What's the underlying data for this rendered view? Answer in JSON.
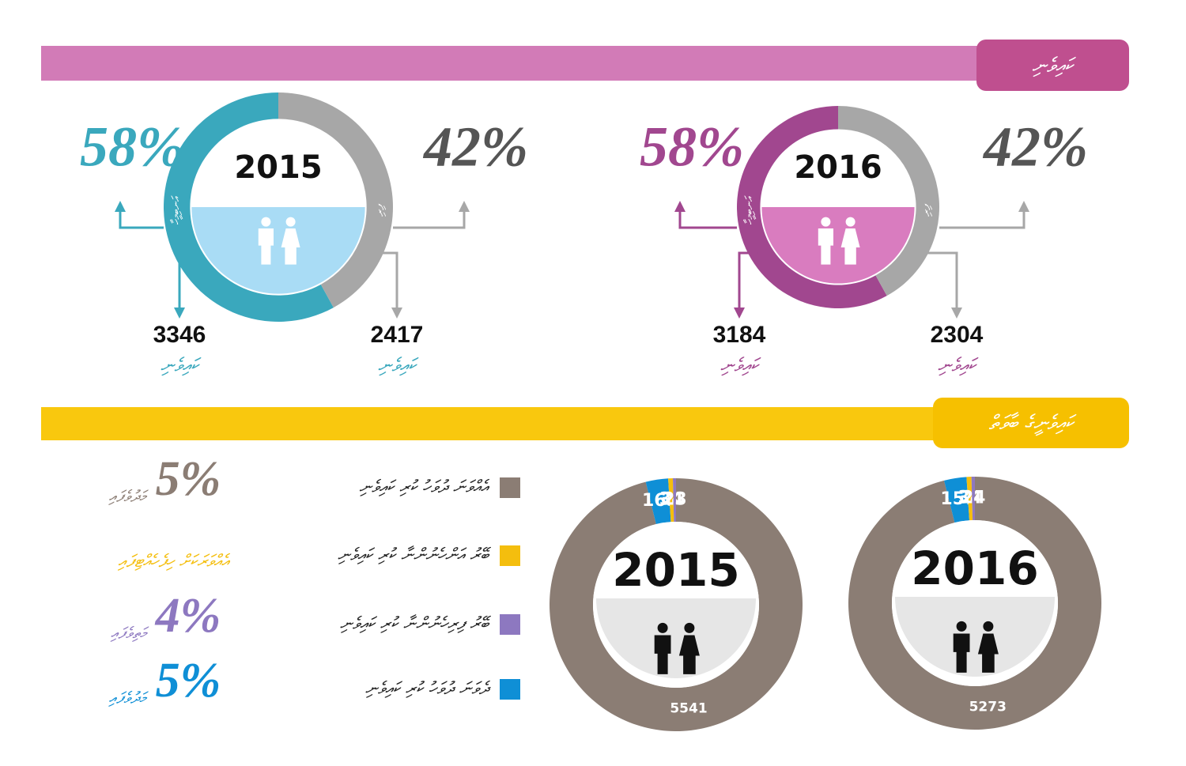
{
  "section1": {
    "header": "ކައިވެނި",
    "panels": [
      {
        "year": "2015",
        "color": "#3aa8bd",
        "inner_color": "#a9dcf5",
        "rest_color": "#a7a7a7",
        "left": {
          "percent": {
            "value": 58,
            "label": "58%"
          },
          "side_label": "އަނބިމީހާ",
          "count": 3346,
          "caption": "ކައިވެނި"
        },
        "right": {
          "percent": {
            "value": 42,
            "label": "42%"
          },
          "side_label": "ފިރި",
          "count": 2417,
          "caption": "ކައިވެނި"
        }
      },
      {
        "year": "2016",
        "color": "#a1478f",
        "inner_color": "#d97cbf",
        "rest_color": "#a7a7a7",
        "left": {
          "percent": {
            "value": 58,
            "label": "58%"
          },
          "side_label": "އަނބިމީހާ",
          "count": 3184,
          "caption": "ކައިވެނި"
        },
        "right": {
          "percent": {
            "value": 42,
            "label": "42%"
          },
          "side_label": "ފިރި",
          "count": 2304,
          "caption": "ކައިވެނި"
        }
      }
    ]
  },
  "section2": {
    "header": "ކައިވެނީގެ ބާވަތް",
    "legend": [
      {
        "label": "އެއްވަނަ ދުވަހު ކުރި ކައިވެނި",
        "color": "#8b7d74",
        "stat": "5%",
        "note": "މަދުވެފައި"
      },
      {
        "label": "ބޭރު އަންހެނުންނާ ކުރި ކައިވެނި",
        "color": "#f4be0e",
        "stat": null,
        "note": "އެއްވަރަކަށް ހިފެހެއްޓިފައި"
      },
      {
        "label": "ބޭރު ފިރިހެނުންނާ ކުރި ކައިވެނި",
        "color": "#8d78c0",
        "stat": "4%",
        "note": "މަތިވެފައި"
      },
      {
        "label": "ދެވަނަ ދުވަހު ކުރި ކައިވެނި",
        "color": "#0f8fd6",
        "stat": "5%",
        "note": "މަދުވެފައި"
      }
    ],
    "donuts": [
      {
        "year": "2015",
        "segments": [
          {
            "value": 5541,
            "color": "#8b7d74"
          },
          {
            "value": 165,
            "color": "#0f8fd6"
          },
          {
            "value": 34,
            "color": "#f4be0e"
          },
          {
            "value": 23,
            "color": "#8d78c0"
          }
        ]
      },
      {
        "year": "2016",
        "segments": [
          {
            "value": 5273,
            "color": "#8b7d74"
          },
          {
            "value": 157,
            "color": "#0f8fd6"
          },
          {
            "value": 34,
            "color": "#f4be0e"
          },
          {
            "value": 24,
            "color": "#8d78c0"
          }
        ]
      }
    ]
  }
}
